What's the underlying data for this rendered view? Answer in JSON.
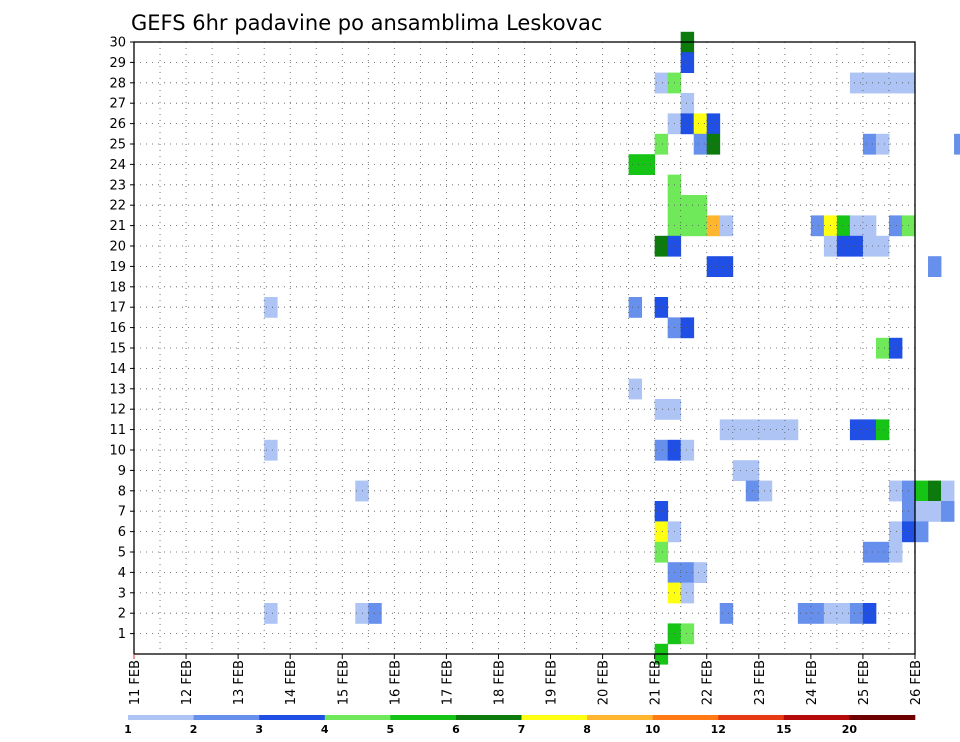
{
  "chart_data": {
    "type": "heatmap",
    "title": "GEFS 6hr padavine po ansamblima Leskovac",
    "x_tick_labels": [
      "11 FEB",
      "12 FEB",
      "13 FEB",
      "14 FEB",
      "15 FEB",
      "16 FEB",
      "17 FEB",
      "18 FEB",
      "19 FEB",
      "20 FEB",
      "21 FEB",
      "22 FEB",
      "23 FEB",
      "24 FEB",
      "25 FEB",
      "26 FEB"
    ],
    "y_tick_labels": [
      "1",
      "2",
      "3",
      "4",
      "5",
      "6",
      "7",
      "8",
      "9",
      "10",
      "11",
      "12",
      "13",
      "14",
      "15",
      "16",
      "17",
      "18",
      "19",
      "20",
      "21",
      "22",
      "23",
      "24",
      "25",
      "26",
      "27",
      "28",
      "29",
      "30"
    ],
    "xlim_days": [
      11,
      26
    ],
    "ylim_members": [
      0,
      30
    ],
    "steps_per_day": 4,
    "grid": "dotted",
    "colorbar": {
      "labels": [
        "1",
        "2",
        "3",
        "4",
        "5",
        "6",
        "7",
        "8",
        "10",
        "12",
        "15",
        "20"
      ],
      "colors": [
        "#aec4f4",
        "#6690ec",
        "#1f4fe4",
        "#6fe85a",
        "#16c416",
        "#0c7a0c",
        "#ffff14",
        "#ffb62e",
        "#ff7a14",
        "#e53a12",
        "#b40a0a",
        "#6e0000"
      ]
    },
    "cells_legend": "each cell: [member, six-hour step from 11 FEB 00z, colour class 0-11]",
    "cells": [
      [
        30,
        42,
        5
      ],
      [
        30,
        116,
        1
      ],
      [
        30,
        123,
        3
      ],
      [
        30,
        125,
        0
      ],
      [
        30,
        126,
        0
      ],
      [
        29,
        42,
        2
      ],
      [
        28,
        40,
        0
      ],
      [
        28,
        41,
        3
      ],
      [
        28,
        55,
        0
      ],
      [
        28,
        56,
        0
      ],
      [
        28,
        57,
        0
      ],
      [
        28,
        58,
        0
      ],
      [
        28,
        59,
        0
      ],
      [
        28,
        86,
        0
      ],
      [
        27,
        42,
        0
      ],
      [
        27,
        85,
        4
      ],
      [
        27,
        86,
        1
      ],
      [
        26,
        41,
        0
      ],
      [
        26,
        42,
        2
      ],
      [
        26,
        43,
        6
      ],
      [
        26,
        44,
        2
      ],
      [
        25,
        40,
        3
      ],
      [
        25,
        43,
        1
      ],
      [
        25,
        44,
        5
      ],
      [
        25,
        56,
        1
      ],
      [
        25,
        57,
        0
      ],
      [
        25,
        63,
        1
      ],
      [
        25,
        64,
        0
      ],
      [
        25,
        65,
        0
      ],
      [
        25,
        126,
        0
      ],
      [
        25,
        127,
        0
      ],
      [
        25,
        135,
        0
      ],
      [
        24,
        38,
        4
      ],
      [
        24,
        39,
        4
      ],
      [
        24,
        98,
        1
      ],
      [
        24,
        99,
        0
      ],
      [
        24,
        102,
        2
      ],
      [
        24,
        106,
        1
      ],
      [
        23,
        41,
        3
      ],
      [
        23,
        76,
        1
      ],
      [
        23,
        77,
        3
      ],
      [
        23,
        84,
        0
      ],
      [
        22,
        41,
        3
      ],
      [
        22,
        42,
        3
      ],
      [
        22,
        43,
        3
      ],
      [
        22,
        76,
        0
      ],
      [
        22,
        79,
        2
      ],
      [
        22,
        80,
        3
      ],
      [
        22,
        81,
        0
      ],
      [
        21,
        41,
        3
      ],
      [
        21,
        42,
        3
      ],
      [
        21,
        43,
        3
      ],
      [
        21,
        44,
        7
      ],
      [
        21,
        45,
        0
      ],
      [
        21,
        52,
        1
      ],
      [
        21,
        53,
        6
      ],
      [
        21,
        54,
        4
      ],
      [
        21,
        55,
        0
      ],
      [
        21,
        56,
        0
      ],
      [
        21,
        58,
        1
      ],
      [
        21,
        59,
        3
      ],
      [
        21,
        84,
        0
      ],
      [
        21,
        85,
        0
      ],
      [
        20,
        40,
        5
      ],
      [
        20,
        41,
        2
      ],
      [
        20,
        53,
        0
      ],
      [
        20,
        54,
        2
      ],
      [
        20,
        55,
        2
      ],
      [
        20,
        56,
        0
      ],
      [
        20,
        57,
        0
      ],
      [
        20,
        83,
        1
      ],
      [
        20,
        84,
        0
      ],
      [
        20,
        85,
        0
      ],
      [
        20,
        98,
        2
      ],
      [
        20,
        112,
        3
      ],
      [
        19,
        44,
        2
      ],
      [
        19,
        45,
        2
      ],
      [
        19,
        61,
        1
      ],
      [
        19,
        85,
        4
      ],
      [
        19,
        86,
        5
      ],
      [
        19,
        87,
        1
      ],
      [
        19,
        88,
        0
      ],
      [
        18,
        91,
        0
      ],
      [
        18,
        135,
        0
      ],
      [
        17,
        10,
        0
      ],
      [
        17,
        38,
        1
      ],
      [
        17,
        40,
        2
      ],
      [
        17,
        77,
        0
      ],
      [
        17,
        78,
        2
      ],
      [
        17,
        79,
        0
      ],
      [
        16,
        41,
        1
      ],
      [
        16,
        42,
        2
      ],
      [
        15,
        57,
        3
      ],
      [
        15,
        58,
        2
      ],
      [
        15,
        111,
        0
      ],
      [
        15,
        112,
        0
      ],
      [
        14,
        112,
        0
      ],
      [
        13,
        38,
        0
      ],
      [
        12,
        40,
        0
      ],
      [
        12,
        41,
        0
      ],
      [
        11,
        45,
        0
      ],
      [
        11,
        46,
        0
      ],
      [
        11,
        47,
        0
      ],
      [
        11,
        48,
        0
      ],
      [
        11,
        49,
        0
      ],
      [
        11,
        50,
        0
      ],
      [
        11,
        55,
        2
      ],
      [
        11,
        56,
        2
      ],
      [
        11,
        57,
        4
      ],
      [
        11,
        77,
        0
      ],
      [
        11,
        78,
        0
      ],
      [
        11,
        79,
        0
      ],
      [
        11,
        80,
        0
      ],
      [
        11,
        82,
        0
      ],
      [
        11,
        91,
        2
      ],
      [
        11,
        92,
        1
      ],
      [
        11,
        93,
        1
      ],
      [
        11,
        114,
        4
      ],
      [
        11,
        115,
        1
      ],
      [
        10,
        10,
        0
      ],
      [
        10,
        40,
        1
      ],
      [
        10,
        41,
        2
      ],
      [
        10,
        42,
        0
      ],
      [
        10,
        67,
        0
      ],
      [
        10,
        68,
        0
      ],
      [
        10,
        79,
        0
      ],
      [
        10,
        80,
        1
      ],
      [
        10,
        94,
        0
      ],
      [
        10,
        95,
        3
      ],
      [
        10,
        96,
        0
      ],
      [
        9,
        46,
        0
      ],
      [
        9,
        47,
        0
      ],
      [
        9,
        81,
        3
      ],
      [
        9,
        82,
        0
      ],
      [
        8,
        17,
        0
      ],
      [
        8,
        47,
        1
      ],
      [
        8,
        48,
        0
      ],
      [
        8,
        58,
        0
      ],
      [
        8,
        59,
        1
      ],
      [
        8,
        60,
        4
      ],
      [
        8,
        61,
        5
      ],
      [
        8,
        62,
        0
      ],
      [
        8,
        109,
        0
      ],
      [
        7,
        40,
        2
      ],
      [
        7,
        59,
        1
      ],
      [
        7,
        60,
        0
      ],
      [
        7,
        61,
        0
      ],
      [
        7,
        62,
        1
      ],
      [
        7,
        80,
        0
      ],
      [
        7,
        95,
        0
      ],
      [
        6,
        40,
        6
      ],
      [
        6,
        41,
        0
      ],
      [
        6,
        58,
        0
      ],
      [
        6,
        59,
        2
      ],
      [
        6,
        60,
        1
      ],
      [
        5,
        40,
        3
      ],
      [
        5,
        56,
        1
      ],
      [
        5,
        57,
        1
      ],
      [
        5,
        58,
        0
      ],
      [
        4,
        41,
        1
      ],
      [
        4,
        42,
        1
      ],
      [
        4,
        43,
        0
      ],
      [
        3,
        41,
        6
      ],
      [
        3,
        42,
        0
      ],
      [
        3,
        87,
        2
      ],
      [
        3,
        111,
        0
      ],
      [
        3,
        112,
        10
      ],
      [
        3,
        113,
        3
      ],
      [
        3,
        135,
        0
      ],
      [
        2,
        10,
        0
      ],
      [
        2,
        17,
        0
      ],
      [
        2,
        18,
        1
      ],
      [
        2,
        45,
        1
      ],
      [
        2,
        51,
        1
      ],
      [
        2,
        52,
        1
      ],
      [
        2,
        53,
        0
      ],
      [
        2,
        54,
        0
      ],
      [
        2,
        55,
        1
      ],
      [
        2,
        56,
        2
      ],
      [
        2,
        82,
        2
      ],
      [
        2,
        83,
        0
      ],
      [
        2,
        113,
        4
      ],
      [
        1,
        41,
        4
      ],
      [
        1,
        42,
        3
      ],
      [
        1,
        107,
        3
      ],
      [
        0,
        40,
        4
      ],
      [
        0,
        110,
        2
      ],
      [
        0,
        111,
        1
      ],
      [
        0,
        112,
        0
      ]
    ]
  }
}
